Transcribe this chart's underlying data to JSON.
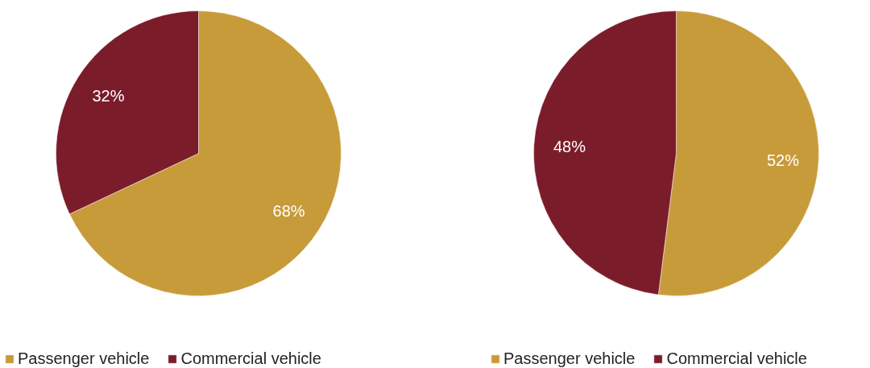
{
  "chart_data": [
    {
      "type": "pie",
      "categories": [
        "Passenger vehicle",
        "Commercial vehicle"
      ],
      "values": [
        68,
        32
      ],
      "value_labels": [
        "68%",
        "32%"
      ],
      "colors": [
        "#c89b3a",
        "#7b1c2a"
      ],
      "legend": "bottom"
    },
    {
      "type": "pie",
      "categories": [
        "Passenger vehicle",
        "Commercial vehicle"
      ],
      "values": [
        52,
        48
      ],
      "value_labels": [
        "52%",
        "48%"
      ],
      "colors": [
        "#c89b3a",
        "#7b1c2a"
      ],
      "legend": "bottom"
    }
  ]
}
